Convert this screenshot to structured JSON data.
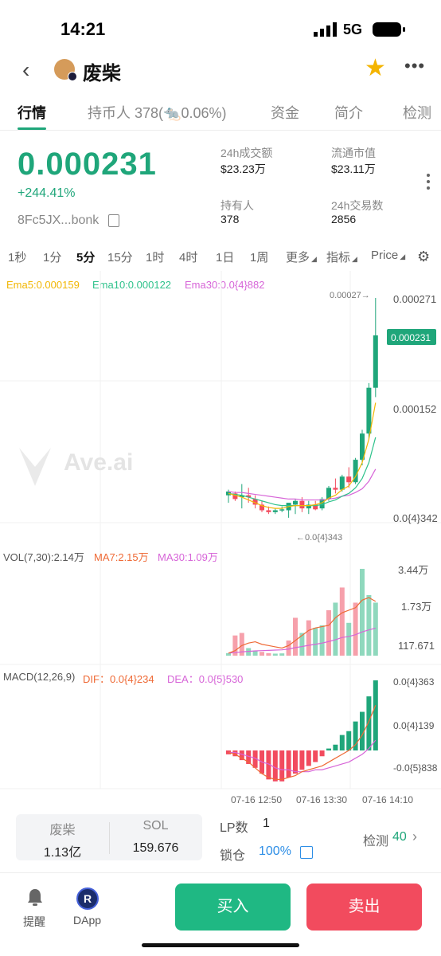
{
  "status_bar": {
    "time": "14:21",
    "network": "5G"
  },
  "header": {
    "back_icon": "chevron-left-icon",
    "token_name": "废柴",
    "favorite_icon": "star-icon",
    "more_icon": "ellipsis-icon"
  },
  "tabs": [
    {
      "label": "行情"
    },
    {
      "label": "持币人 378("
    },
    {
      "label": "0.06%)"
    },
    {
      "label": "资金"
    },
    {
      "label": "简介"
    },
    {
      "label": "检测"
    }
  ],
  "price": {
    "value": "0.000231",
    "change": "+244.41%",
    "address": "8Fc5JX...bonk"
  },
  "stats": {
    "volume_24h_label": "24h成交额",
    "volume_24h": "$23.23万",
    "mcap_label": "流通市值",
    "mcap": "$23.11万",
    "holders_label": "持有人",
    "holders": "378",
    "tx_24h_label": "24h交易数",
    "tx_24h": "2856"
  },
  "intervals": [
    "1秒",
    "1分",
    "5分",
    "15分",
    "1时",
    "4时",
    "1日",
    "1周",
    "更多",
    "指标",
    "Price"
  ],
  "ema": {
    "ema5": "Ema5:0.000159",
    "ema10": "Ema10:0.000122",
    "ema30": "Ema30:0.0{4}882"
  },
  "vol": {
    "label": "VOL(7,30):2.14万",
    "ma7": "MA7:2.15万",
    "ma30": "MA30:1.09万"
  },
  "macd": {
    "label": "MACD(12,26,9)",
    "dif": "DIF：0.0{4}234",
    "dea": "DEA：0.0{5}530"
  },
  "colors": {
    "up": "#1fa67a",
    "down": "#f24b5e",
    "ema5": "#f2b705",
    "ema10": "#2ec28b",
    "ema30": "#d765d8",
    "ma7": "#ef6a36"
  },
  "watermark": "Ave.ai",
  "chart_data": {
    "type": "candlestick",
    "x_ticks": [
      "07-16 12:50",
      "07-16 13:30",
      "07-16 14:10"
    ],
    "price_axis": [
      "0.000271",
      "0.000152",
      "0.0{4}342"
    ],
    "current_price_tag": "0.000231",
    "high_annotation": "0.00027→",
    "low_annotation": "←0.0{4}343",
    "ylim": [
      3.42e-05,
      0.000271
    ],
    "candles": [
      {
        "o": 6e-05,
        "h": 6.6e-05,
        "l": 5.2e-05,
        "c": 6.4e-05
      },
      {
        "o": 6.2e-05,
        "h": 6.4e-05,
        "l": 5.4e-05,
        "c": 5.6e-05
      },
      {
        "o": 5.8e-05,
        "h": 7.2e-05,
        "l": 4.6e-05,
        "c": 6e-05
      },
      {
        "o": 6e-05,
        "h": 6.8e-05,
        "l": 5.2e-05,
        "c": 5.8e-05
      },
      {
        "o": 5.6e-05,
        "h": 6e-05,
        "l": 4.6e-05,
        "c": 5e-05
      },
      {
        "o": 5e-05,
        "h": 5.4e-05,
        "l": 4.2e-05,
        "c": 4.4e-05
      },
      {
        "o": 4.4e-05,
        "h": 4.8e-05,
        "l": 4e-05,
        "c": 4.2e-05
      },
      {
        "o": 4.2e-05,
        "h": 4.6e-05,
        "l": 4e-05,
        "c": 4.4e-05
      },
      {
        "o": 4.4e-05,
        "h": 4.8e-05,
        "l": 4.2e-05,
        "c": 4.5e-05
      },
      {
        "o": 4.4e-05,
        "h": 5e-05,
        "l": 3.6e-05,
        "c": 5.2e-05
      },
      {
        "o": 5e-05,
        "h": 5.6e-05,
        "l": 4e-05,
        "c": 5.4e-05
      },
      {
        "o": 5.4e-05,
        "h": 5.8e-05,
        "l": 4.2e-05,
        "c": 4.6e-05
      },
      {
        "o": 4.6e-05,
        "h": 5.4e-05,
        "l": 4e-05,
        "c": 5e-05
      },
      {
        "o": 5e-05,
        "h": 5.4e-05,
        "l": 4.4e-05,
        "c": 4.5e-05
      },
      {
        "o": 4.6e-05,
        "h": 5.8e-05,
        "l": 4.4e-05,
        "c": 5.6e-05
      },
      {
        "o": 5.6e-05,
        "h": 7e-05,
        "l": 5.4e-05,
        "c": 6.8e-05
      },
      {
        "o": 6.8e-05,
        "h": 7.8e-05,
        "l": 6.2e-05,
        "c": 6.6e-05
      },
      {
        "o": 6.6e-05,
        "h": 8.2e-05,
        "l": 6.4e-05,
        "c": 8e-05
      },
      {
        "o": 8e-05,
        "h": 9e-05,
        "l": 6.8e-05,
        "c": 7.4e-05
      },
      {
        "o": 7.4e-05,
        "h": 0.0001,
        "l": 7.2e-05,
        "c": 9.8e-05
      },
      {
        "o": 9.8e-05,
        "h": 0.00013,
        "l": 9.2e-05,
        "c": 0.000126
      },
      {
        "o": 0.000126,
        "h": 0.00018,
        "l": 0.00012,
        "c": 0.000175
      },
      {
        "o": 0.000175,
        "h": 0.000271,
        "l": 0.000165,
        "c": 0.000231
      }
    ],
    "ema5": [
      6.2e-05,
      6e-05,
      5.8e-05,
      5.5e-05,
      5.2e-05,
      4.9e-05,
      4.7e-05,
      4.6e-05,
      4.6e-05,
      4.8e-05,
      4.9e-05,
      4.9e-05,
      4.9e-05,
      5e-05,
      5.2e-05,
      5.7e-05,
      6e-05,
      6.6e-05,
      7e-05,
      8e-05,
      9.5e-05,
      0.00012,
      0.000159
    ],
    "ema10": [
      6.2e-05,
      6.1e-05,
      6e-05,
      5.8e-05,
      5.6e-05,
      5.4e-05,
      5.2e-05,
      5e-05,
      4.9e-05,
      4.9e-05,
      4.9e-05,
      4.9e-05,
      4.9e-05,
      4.9e-05,
      5e-05,
      5.3e-05,
      5.5e-05,
      5.9e-05,
      6.2e-05,
      6.8e-05,
      7.8e-05,
      9.5e-05,
      0.000122
    ],
    "ema30": [
      6.4e-05,
      6.3e-05,
      6.3e-05,
      6.2e-05,
      6.1e-05,
      6e-05,
      5.9e-05,
      5.8e-05,
      5.7e-05,
      5.6e-05,
      5.6e-05,
      5.5e-05,
      5.5e-05,
      5.5e-05,
      5.5e-05,
      5.6e-05,
      5.7e-05,
      5.9e-05,
      6e-05,
      6.3e-05,
      6.7e-05,
      7.5e-05,
      8.8e-05
    ],
    "volume_axis": [
      "3.44万",
      "1.73万",
      "117.671"
    ],
    "volume": [
      1000,
      8000,
      9000,
      3000,
      2000,
      1500,
      1000,
      800,
      900,
      6000,
      15000,
      9000,
      14000,
      11000,
      12000,
      18000,
      21000,
      27000,
      13000,
      21000,
      34400,
      24000,
      21000
    ],
    "volume_up": [
      true,
      false,
      false,
      true,
      true,
      false,
      false,
      true,
      true,
      false,
      false,
      true,
      false,
      true,
      true,
      false,
      true,
      false,
      true,
      false,
      true,
      true,
      true
    ],
    "ma7_vol": [
      1000,
      2000,
      4000,
      5000,
      5500,
      4500,
      4000,
      3500,
      3000,
      4000,
      6000,
      8000,
      10000,
      11000,
      11500,
      12000,
      15000,
      17000,
      18000,
      19000,
      22000,
      23000,
      21500
    ],
    "ma30_vol": [
      1000,
      1200,
      1500,
      1700,
      1900,
      2000,
      2100,
      2200,
      2300,
      2600,
      3200,
      3600,
      4100,
      4500,
      5000,
      5600,
      6300,
      7200,
      7600,
      8300,
      9400,
      10200,
      10900
    ],
    "macd_axis": [
      "0.0{4}363",
      "0.0{4}139",
      "-0.0{5}838"
    ],
    "macd_hist": [
      -0.2,
      -0.3,
      -0.5,
      -0.7,
      -0.9,
      -1.2,
      -1.5,
      -1.6,
      -1.6,
      -1.4,
      -1.2,
      -1.0,
      -0.8,
      -0.6,
      -0.3,
      0.1,
      0.3,
      0.8,
      1.0,
      1.5,
      2.0,
      2.8,
      3.63
    ],
    "dif": [
      -0.1,
      -0.2,
      -0.4,
      -0.6,
      -0.9,
      -1.2,
      -1.4,
      -1.5,
      -1.5,
      -1.4,
      -1.3,
      -1.1,
      -1.0,
      -0.9,
      -0.8,
      -0.6,
      -0.4,
      -0.2,
      0.0,
      0.3,
      0.8,
      1.5,
      2.34
    ],
    "dea": [
      -0.1,
      -0.1,
      -0.2,
      -0.3,
      -0.4,
      -0.6,
      -0.7,
      -0.9,
      -1.0,
      -1.0,
      -1.1,
      -1.1,
      -1.1,
      -1.0,
      -1.0,
      -0.9,
      -0.8,
      -0.7,
      -0.6,
      -0.4,
      -0.2,
      0.1,
      0.53
    ]
  },
  "bottom": {
    "token_label": "废柴",
    "token_amount": "1.13亿",
    "sol_label": "SOL",
    "sol_amount": "159.676",
    "lp_label": "LP数",
    "lp_value": "1",
    "lock_label": "锁仓",
    "lock_value": "100%",
    "check_label": "检测",
    "check_count": "40"
  },
  "nav": {
    "alert_label": "提醒",
    "dapp_label": "DApp",
    "buy_label": "买入",
    "sell_label": "卖出"
  }
}
